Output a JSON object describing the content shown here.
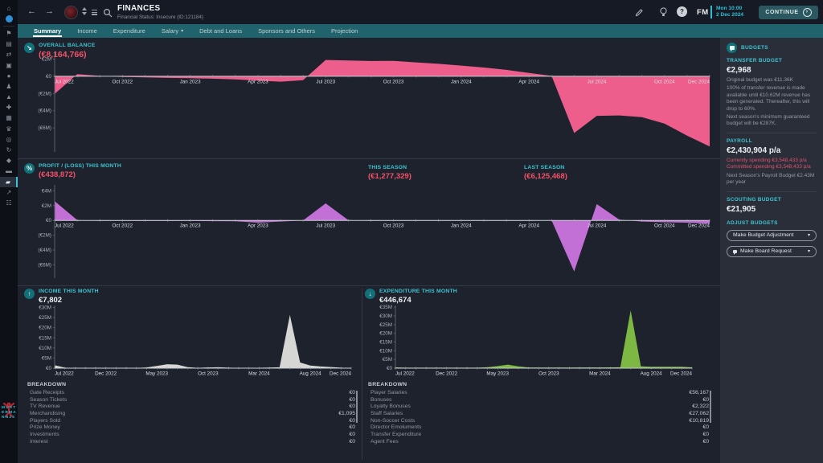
{
  "header": {
    "title": "FINANCES",
    "subtitle": "Financial Status: Insecure (ID:121184)",
    "time": "Mon 10:00",
    "date": "2 Dec 2024",
    "continue_label": "CONTINUE",
    "fm_logo": "FM",
    "help_glyph": "?"
  },
  "tabs": [
    {
      "label": "Summary",
      "active": true
    },
    {
      "label": "Income"
    },
    {
      "label": "Expenditure"
    },
    {
      "label": "Salary",
      "dropdown": true
    },
    {
      "label": "Debt and Loans"
    },
    {
      "label": "Sponsors and Others"
    },
    {
      "label": "Projection"
    }
  ],
  "sidebar": {
    "items": [
      {
        "name": "home",
        "glyph": "⌂"
      },
      {
        "name": "inbox",
        "glyph": "✉",
        "divider_after": true
      },
      {
        "name": "club-badge",
        "glyph": "⚑"
      },
      {
        "name": "squad",
        "glyph": "▤"
      },
      {
        "name": "transfers",
        "glyph": "⇄"
      },
      {
        "name": "dev-centre",
        "glyph": "▣"
      },
      {
        "name": "tactics",
        "glyph": "●"
      },
      {
        "name": "staff",
        "glyph": "♟"
      },
      {
        "name": "training",
        "glyph": "▲"
      },
      {
        "name": "medical-centre",
        "glyph": "✚"
      },
      {
        "name": "schedule",
        "glyph": "▦"
      },
      {
        "name": "competitions",
        "glyph": "♛"
      },
      {
        "name": "scouting",
        "glyph": "◎"
      },
      {
        "name": "world",
        "glyph": "↻"
      },
      {
        "name": "club-vision",
        "glyph": "◆"
      },
      {
        "name": "club-info",
        "glyph": "▬"
      },
      {
        "name": "finances",
        "glyph": "▰",
        "selected": true
      },
      {
        "name": "data-hub",
        "glyph": "↗"
      },
      {
        "name": "analysis",
        "glyph": "☷"
      }
    ],
    "logo_lines": [
      "MUST",
      "ERMA",
      "NN23"
    ]
  },
  "sections": {
    "overall_balance": {
      "label": "OVERALL BALANCE",
      "value": "(€8,164,766)"
    },
    "profit_loss": {
      "label": "PROFIT / (LOSS) THIS MONTH",
      "value": "(€438,872)",
      "this_season_label": "THIS SEASON",
      "this_season_value": "(€1,277,329)",
      "last_season_label": "LAST SEASON",
      "last_season_value": "(€6,125,468)"
    },
    "income": {
      "label": "INCOME THIS MONTH",
      "value": "€7,802",
      "breakdown_title": "BREAKDOWN",
      "breakdown": [
        {
          "label": "Gate Receipts",
          "value": "€0"
        },
        {
          "label": "Season Tickets",
          "value": "€0"
        },
        {
          "label": "TV Revenue",
          "value": "€0"
        },
        {
          "label": "Merchandising",
          "value": "€1,095"
        },
        {
          "label": "Players Sold",
          "value": "€0"
        },
        {
          "label": "Prize Money",
          "value": "€0"
        },
        {
          "label": "Investments",
          "value": "€0"
        },
        {
          "label": "Interest",
          "value": "€0"
        }
      ]
    },
    "expenditure": {
      "label": "EXPENDITURE THIS MONTH",
      "value": "€446,674",
      "breakdown_title": "BREAKDOWN",
      "breakdown": [
        {
          "label": "Player Salaries",
          "value": "€56,167"
        },
        {
          "label": "Bonuses",
          "value": "€0"
        },
        {
          "label": "Loyalty Bonuses",
          "value": "€2,322"
        },
        {
          "label": "Staff Salaries",
          "value": "€27,062"
        },
        {
          "label": "Non-Soccer Costs",
          "value": "€10,819"
        },
        {
          "label": "Director Emoluments",
          "value": "€0"
        },
        {
          "label": "Transfer Expenditure",
          "value": "€0"
        },
        {
          "label": "Agent Fees",
          "value": "€0"
        }
      ]
    }
  },
  "budgets_panel": {
    "title": "BUDGETS",
    "transfer": {
      "label": "TRANSFER BUDGET",
      "value": "€2,968",
      "notes": [
        "Original budget was €11.36K",
        "100% of transfer revenue is made available until €10.62M revenue has been generated. Thereafter, this will drop to 60%.",
        "Next season's minimum guaranteed budget will be €287K."
      ]
    },
    "payroll": {
      "label": "PAYROLL",
      "value": "€2,430,904 p/a",
      "warnings": [
        "Currently spending €3,548,433 p/a",
        "Committed spending €3,548,433 p/a"
      ],
      "note": "Next Season's Payroll Budget €2.43M per year"
    },
    "scouting": {
      "label": "SCOUTING BUDGET",
      "value": "€21,905"
    },
    "adjust": {
      "label": "ADJUST BUDGETS",
      "actions": [
        "Make Budget Adjustment",
        "Make Board Request"
      ]
    }
  },
  "colors": {
    "balance_area": "#ee5e8c",
    "profit_area": "#c26fd6",
    "income_area": "#d6d6d4",
    "expenditure_area": "#7db843",
    "accent_teal": "#3fc4d2",
    "negative_red": "#f1536a"
  },
  "chart_data": [
    {
      "dom_id": "chart-balance",
      "type": "area",
      "title": "Overall Balance",
      "unit": "EUR millions",
      "color": "#ee5e8c",
      "axis": "zero",
      "x": [
        "Jul 2022",
        "Aug 2022",
        "Sep 2022",
        "Oct 2022",
        "Nov 2022",
        "Dec 2022",
        "Jan 2023",
        "Feb 2023",
        "Mar 2023",
        "Apr 2023",
        "May 2023",
        "Jun 2023",
        "Jul 2023",
        "Aug 2023",
        "Sep 2023",
        "Oct 2023",
        "Nov 2023",
        "Dec 2023",
        "Jan 2024",
        "Feb 2024",
        "Mar 2024",
        "Apr 2024",
        "May 2024",
        "Jun 2024",
        "Jul 2024",
        "Aug 2024",
        "Sep 2024",
        "Oct 2024",
        "Nov 2024",
        "Dec 2024"
      ],
      "values": [
        -2.05,
        0.25,
        0.05,
        -0.08,
        -0.12,
        -0.18,
        -0.22,
        -0.28,
        -0.35,
        -0.5,
        -0.62,
        -0.45,
        1.9,
        1.85,
        1.78,
        1.8,
        1.62,
        1.45,
        1.25,
        1.02,
        0.75,
        0.4,
        0.05,
        -6.6,
        -4.6,
        -4.55,
        -4.75,
        -5.5,
        -6.9,
        -8.16
      ],
      "ylim": [
        -8.8,
        2.8
      ],
      "yticks": [
        [
          2,
          "€2M"
        ],
        [
          0,
          "€0"
        ],
        [
          -2,
          "(€2M)"
        ],
        [
          -4,
          "(€4M)"
        ],
        [
          -6,
          "(€6M)"
        ]
      ],
      "xticks": [
        [
          0,
          "Jul 2022"
        ],
        [
          3,
          "Oct 2022"
        ],
        [
          6,
          "Jan 2023"
        ],
        [
          9,
          "Apr 2023"
        ],
        [
          12,
          "Jul 2023"
        ],
        [
          15,
          "Oct 2023"
        ],
        [
          18,
          "Jan 2024"
        ],
        [
          21,
          "Apr 2024"
        ],
        [
          24,
          "Jul 2024"
        ],
        [
          27,
          "Oct 2024"
        ],
        [
          29,
          "Dec 2024"
        ]
      ]
    },
    {
      "dom_id": "chart-profit",
      "type": "area",
      "title": "Profit / (Loss)",
      "unit": "EUR millions",
      "color": "#c26fd6",
      "axis": "zero",
      "x": [
        "Jul 2022",
        "Aug 2022",
        "Sep 2022",
        "Oct 2022",
        "Nov 2022",
        "Dec 2022",
        "Jan 2023",
        "Feb 2023",
        "Mar 2023",
        "Apr 2023",
        "May 2023",
        "Jun 2023",
        "Jul 2023",
        "Aug 2023",
        "Sep 2023",
        "Oct 2023",
        "Nov 2023",
        "Dec 2023",
        "Jan 2024",
        "Feb 2024",
        "Mar 2024",
        "Apr 2024",
        "May 2024",
        "Jun 2024",
        "Jul 2024",
        "Aug 2024",
        "Sep 2024",
        "Oct 2024",
        "Nov 2024",
        "Dec 2024"
      ],
      "values": [
        2.6,
        0.05,
        -0.05,
        -0.06,
        -0.08,
        -0.08,
        -0.08,
        -0.1,
        -0.12,
        -0.3,
        -0.15,
        0,
        2.3,
        0.05,
        -0.05,
        -0.05,
        -0.06,
        -0.06,
        -0.06,
        -0.06,
        -0.06,
        -0.05,
        0,
        -6.9,
        2.2,
        0.1,
        -0.15,
        -0.25,
        -0.3,
        -0.44
      ],
      "ylim": [
        -7.8,
        4.8
      ],
      "yticks": [
        [
          4,
          "€4M"
        ],
        [
          2,
          "€2M"
        ],
        [
          0,
          "€0"
        ],
        [
          -2,
          "(€2M)"
        ],
        [
          -4,
          "(€4M)"
        ],
        [
          -6,
          "(€6M)"
        ]
      ],
      "xticks": [
        [
          0,
          "Jul 2022"
        ],
        [
          3,
          "Oct 2022"
        ],
        [
          6,
          "Jan 2023"
        ],
        [
          9,
          "Apr 2023"
        ],
        [
          12,
          "Jul 2023"
        ],
        [
          15,
          "Oct 2023"
        ],
        [
          18,
          "Jan 2024"
        ],
        [
          21,
          "Apr 2024"
        ],
        [
          24,
          "Jul 2024"
        ],
        [
          27,
          "Oct 2024"
        ],
        [
          29,
          "Dec 2024"
        ]
      ]
    },
    {
      "dom_id": "chart-income",
      "type": "area",
      "title": "Income",
      "unit": "EUR millions",
      "color": "#d6d6d4",
      "axis": "bottom",
      "x": [
        "Jul 2022",
        "Aug 2022",
        "Sep 2022",
        "Oct 2022",
        "Nov 2022",
        "Dec 2022",
        "Jan 2023",
        "Feb 2023",
        "Mar 2023",
        "Apr 2023",
        "May 2023",
        "Jun 2023",
        "Jul 2023",
        "Aug 2023",
        "Sep 2023",
        "Oct 2023",
        "Nov 2023",
        "Dec 2023",
        "Jan 2024",
        "Feb 2024",
        "Mar 2024",
        "Apr 2024",
        "May 2024",
        "Jun 2024",
        "Jul 2024",
        "Aug 2024",
        "Sep 2024",
        "Oct 2024",
        "Nov 2024",
        "Dec 2024"
      ],
      "values": [
        1.45,
        0.25,
        0.08,
        0.06,
        0.06,
        0.06,
        0.06,
        0.06,
        0.08,
        0.35,
        1.1,
        1.95,
        1.75,
        0.5,
        0.15,
        0.35,
        0.45,
        0.25,
        0.15,
        0.12,
        0.2,
        0.3,
        0.45,
        26.3,
        2.8,
        1.3,
        0.85,
        0.55,
        0.25,
        0.01
      ],
      "ylim": [
        0,
        31
      ],
      "yticks": [
        [
          30,
          "€30M"
        ],
        [
          25,
          "€25M"
        ],
        [
          20,
          "€20M"
        ],
        [
          15,
          "€15M"
        ],
        [
          10,
          "€10M"
        ],
        [
          5,
          "€5M"
        ],
        [
          0,
          "€0"
        ]
      ],
      "xticks": [
        [
          0,
          "Jul 2022"
        ],
        [
          5,
          "Dec 2022"
        ],
        [
          10,
          "May 2023"
        ],
        [
          15,
          "Oct 2023"
        ],
        [
          20,
          "Mar 2024"
        ],
        [
          25,
          "Aug 2024"
        ],
        [
          29,
          "Dec 2024"
        ]
      ]
    },
    {
      "dom_id": "chart-expenditure",
      "type": "area",
      "title": "Expenditure",
      "unit": "EUR millions",
      "color": "#7db843",
      "axis": "bottom",
      "x": [
        "Jul 2022",
        "Aug 2022",
        "Sep 2022",
        "Oct 2022",
        "Nov 2022",
        "Dec 2022",
        "Jan 2023",
        "Feb 2023",
        "Mar 2023",
        "Apr 2023",
        "May 2023",
        "Jun 2023",
        "Jul 2023",
        "Aug 2023",
        "Sep 2023",
        "Oct 2023",
        "Nov 2023",
        "Dec 2023",
        "Jan 2024",
        "Feb 2024",
        "Mar 2024",
        "Apr 2024",
        "May 2024",
        "Jun 2024",
        "Jul 2024",
        "Aug 2024",
        "Sep 2024",
        "Oct 2024",
        "Nov 2024",
        "Dec 2024"
      ],
      "values": [
        0.45,
        0.3,
        0.28,
        0.28,
        0.28,
        0.28,
        0.3,
        0.3,
        0.3,
        0.5,
        1.2,
        2.05,
        1.0,
        0.4,
        0.35,
        0.35,
        0.38,
        0.38,
        0.4,
        0.4,
        0.42,
        0.45,
        0.5,
        33.2,
        1.0,
        0.85,
        0.85,
        0.85,
        0.8,
        0.45
      ],
      "ylim": [
        0,
        36
      ],
      "yticks": [
        [
          35,
          "€35M"
        ],
        [
          30,
          "€30M"
        ],
        [
          25,
          "€25M"
        ],
        [
          20,
          "€20M"
        ],
        [
          15,
          "€15M"
        ],
        [
          10,
          "€10M"
        ],
        [
          5,
          "€5M"
        ],
        [
          0,
          "€0"
        ]
      ],
      "xticks": [
        [
          0,
          "Jul 2022"
        ],
        [
          5,
          "Dec 2022"
        ],
        [
          10,
          "May 2023"
        ],
        [
          15,
          "Oct 2023"
        ],
        [
          20,
          "Mar 2024"
        ],
        [
          25,
          "Aug 2024"
        ],
        [
          29,
          "Dec 2024"
        ]
      ]
    }
  ]
}
